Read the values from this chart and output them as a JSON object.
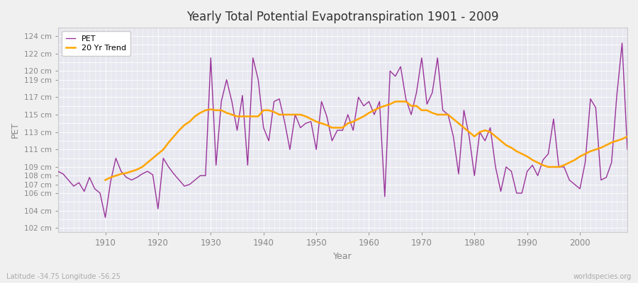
{
  "title": "Yearly Total Potential Evapotranspiration 1901 - 2009",
  "xlabel": "Year",
  "ylabel": "PET",
  "subtitle_left": "Latitude -34.75 Longitude -56.25",
  "subtitle_right": "worldspecies.org",
  "pet_color": "#993399",
  "trend_color": "#FFA500",
  "bg_color": "#f0f0f0",
  "plot_bg": "#e8e8f0",
  "grid_color": "#ffffff",
  "ylim": [
    101.5,
    125.0
  ],
  "years": [
    1901,
    1902,
    1903,
    1904,
    1905,
    1906,
    1907,
    1908,
    1909,
    1910,
    1911,
    1912,
    1913,
    1914,
    1915,
    1916,
    1917,
    1918,
    1919,
    1920,
    1921,
    1922,
    1923,
    1924,
    1925,
    1926,
    1927,
    1928,
    1929,
    1930,
    1931,
    1932,
    1933,
    1934,
    1935,
    1936,
    1937,
    1938,
    1939,
    1940,
    1941,
    1942,
    1943,
    1944,
    1945,
    1946,
    1947,
    1948,
    1949,
    1950,
    1951,
    1952,
    1953,
    1954,
    1955,
    1956,
    1957,
    1958,
    1959,
    1960,
    1961,
    1962,
    1963,
    1964,
    1965,
    1966,
    1967,
    1968,
    1969,
    1970,
    1971,
    1972,
    1973,
    1974,
    1975,
    1976,
    1977,
    1978,
    1979,
    1980,
    1981,
    1982,
    1983,
    1984,
    1985,
    1986,
    1987,
    1988,
    1989,
    1990,
    1991,
    1992,
    1993,
    1994,
    1995,
    1996,
    1997,
    1998,
    1999,
    2000,
    2001,
    2002,
    2003,
    2004,
    2005,
    2006,
    2007,
    2008,
    2009
  ],
  "pet": [
    108.5,
    108.2,
    107.5,
    106.8,
    107.2,
    106.2,
    107.8,
    106.5,
    106.0,
    103.2,
    107.3,
    110.0,
    108.5,
    107.8,
    107.5,
    107.8,
    108.2,
    108.5,
    108.1,
    104.2,
    110.0,
    109.0,
    108.2,
    107.5,
    106.8,
    107.0,
    107.5,
    108.0,
    108.0,
    121.5,
    109.2,
    116.5,
    119.0,
    116.5,
    113.2,
    117.2,
    109.2,
    121.5,
    119.0,
    113.5,
    112.0,
    116.5,
    116.8,
    114.2,
    111.0,
    115.0,
    113.5,
    114.0,
    114.2,
    111.0,
    116.5,
    114.8,
    112.0,
    113.2,
    113.2,
    115.0,
    113.2,
    117.0,
    116.0,
    116.5,
    115.0,
    116.5,
    105.6,
    120.0,
    119.4,
    120.5,
    116.8,
    115.0,
    117.5,
    121.5,
    116.2,
    117.5,
    121.5,
    115.5,
    115.0,
    112.5,
    108.2,
    115.5,
    112.5,
    108.0,
    113.0,
    112.0,
    113.5,
    109.0,
    106.2,
    109.0,
    108.5,
    106.0,
    106.0,
    108.5,
    109.2,
    108.0,
    109.8,
    110.5,
    114.5,
    109.0,
    109.0,
    107.5,
    107.0,
    106.5,
    109.5,
    116.8,
    115.8,
    107.5,
    107.8,
    109.5,
    117.2,
    123.2,
    111.0
  ],
  "trend_years": [
    1910,
    1911,
    1912,
    1913,
    1914,
    1915,
    1916,
    1917,
    1918,
    1919,
    1920,
    1921,
    1922,
    1923,
    1924,
    1925,
    1926,
    1927,
    1928,
    1929,
    1930,
    1931,
    1932,
    1933,
    1934,
    1935,
    1936,
    1937,
    1938,
    1939,
    1940,
    1941,
    1942,
    1943,
    1944,
    1945,
    1946,
    1947,
    1948,
    1949,
    1950,
    1951,
    1952,
    1953,
    1954,
    1955,
    1956,
    1957,
    1958,
    1959,
    1960,
    1961,
    1962,
    1963,
    1964,
    1965,
    1966,
    1967,
    1968,
    1969,
    1970,
    1971,
    1972,
    1973,
    1974,
    1975,
    1976,
    1977,
    1978,
    1979,
    1980,
    1981,
    1982,
    1983,
    1984,
    1985,
    1986,
    1987,
    1988,
    1989,
    1990,
    1991,
    1992,
    1993,
    1994,
    1995,
    1996,
    1997,
    1998,
    1999,
    2000,
    2001,
    2002,
    2003,
    2004,
    2005,
    2006,
    2007,
    2008,
    2009
  ],
  "trend": [
    107.5,
    107.8,
    108.0,
    108.2,
    108.3,
    108.5,
    108.7,
    109.0,
    109.5,
    110.0,
    110.5,
    111.0,
    111.8,
    112.5,
    113.2,
    113.8,
    114.2,
    114.8,
    115.2,
    115.5,
    115.6,
    115.5,
    115.5,
    115.2,
    115.0,
    114.8,
    114.8,
    114.8,
    114.8,
    114.8,
    115.5,
    115.5,
    115.3,
    115.0,
    115.0,
    115.0,
    115.0,
    115.0,
    114.8,
    114.5,
    114.2,
    114.0,
    113.8,
    113.5,
    113.5,
    113.5,
    114.0,
    114.2,
    114.5,
    114.8,
    115.2,
    115.5,
    115.8,
    116.0,
    116.2,
    116.5,
    116.5,
    116.5,
    116.0,
    116.0,
    115.5,
    115.5,
    115.2,
    115.0,
    115.0,
    115.0,
    114.5,
    114.0,
    113.5,
    113.0,
    112.5,
    113.0,
    113.2,
    113.0,
    112.5,
    112.0,
    111.5,
    111.2,
    110.8,
    110.5,
    110.2,
    109.8,
    109.5,
    109.2,
    109.0,
    109.0,
    109.0,
    109.2,
    109.5,
    109.8,
    110.2,
    110.5,
    110.8,
    111.0,
    111.2,
    111.5,
    111.8,
    112.0,
    112.2,
    112.5
  ]
}
